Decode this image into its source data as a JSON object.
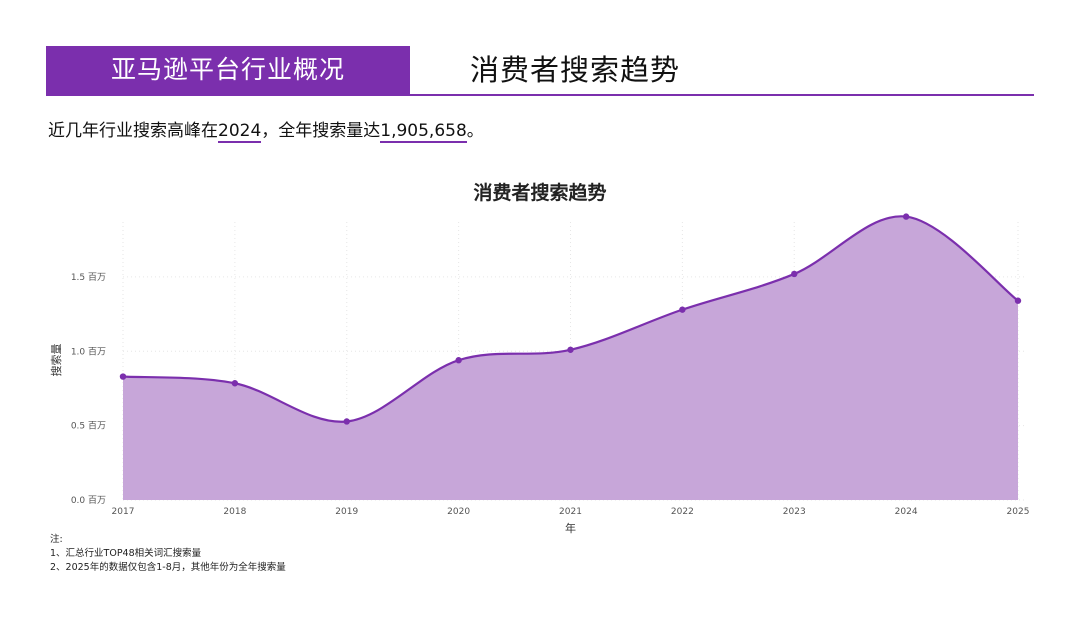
{
  "header": {
    "banner": "亚马逊平台行业概况",
    "title": "消费者搜索趋势"
  },
  "summary": {
    "prefix": "近几年行业搜索高峰在",
    "peak_year": "2024",
    "middle": "，全年搜索量达",
    "peak_value": "1,905,658",
    "suffix": "。"
  },
  "notes": {
    "heading": "注:",
    "line1": "1、汇总行业TOP48相关词汇搜索量",
    "line2": "2、2025年的数据仅包含1-8月，其他年份为全年搜索量"
  },
  "colors": {
    "accent": "#7b2fad",
    "fill": "#c7a6d9"
  },
  "chart_data": {
    "type": "area",
    "title": "消费者搜索趋势",
    "xlabel": "年",
    "ylabel": "搜索量",
    "x": [
      "2017",
      "2018",
      "2019",
      "2020",
      "2021",
      "2022",
      "2023",
      "2024",
      "2025"
    ],
    "values": [
      830000,
      785000,
      528000,
      940000,
      1010000,
      1280000,
      1520000,
      1905658,
      1340000
    ],
    "ylim": [
      0,
      1950000
    ],
    "yticks": [
      0,
      500000,
      1000000,
      1500000
    ],
    "ytick_labels": [
      "0.0 百万",
      "0.5 百万",
      "1.0 百万",
      "1.5 百万"
    ],
    "grid": true,
    "smooth": true
  }
}
